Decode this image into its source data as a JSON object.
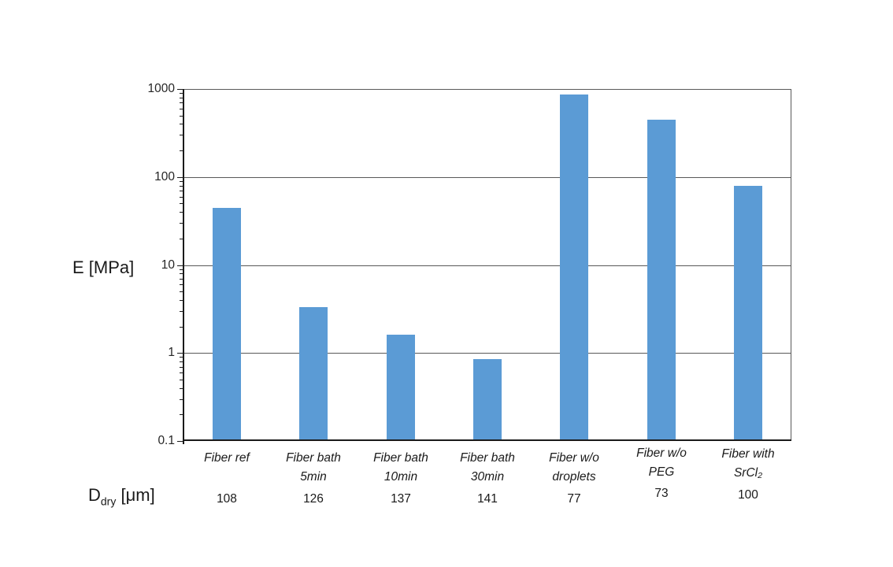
{
  "chart_data": {
    "type": "bar",
    "title": "",
    "ylabel": "E [MPa]",
    "y_axis": {
      "scale": "log",
      "min": 0.1,
      "max": 1000,
      "ticks": [
        {
          "label": "1000",
          "value": 1000
        },
        {
          "label": "100",
          "value": 100
        },
        {
          "label": "10",
          "value": 10
        },
        {
          "label": "1",
          "value": 1
        },
        {
          "label": "0.1",
          "value": 0.1
        }
      ],
      "grid": true
    },
    "categories": [
      {
        "slug": "fiber-ref",
        "lines": [
          "Fiber ref"
        ]
      },
      {
        "slug": "fiber-bath-5min",
        "lines": [
          "Fiber bath",
          "5min"
        ]
      },
      {
        "slug": "fiber-bath-10min",
        "lines": [
          "Fiber bath",
          "10min"
        ]
      },
      {
        "slug": "fiber-bath-30min",
        "lines": [
          "Fiber bath",
          "30min"
        ]
      },
      {
        "slug": "fiber-wo-droplets",
        "lines": [
          "Fiber w/o",
          "droplets"
        ]
      },
      {
        "slug": "fiber-wo-peg",
        "lines": [
          "Fiber w/o",
          "PEG"
        ]
      },
      {
        "slug": "fiber-with-srcl2",
        "lines": [
          "Fiber with",
          "SrCl₂"
        ]
      }
    ],
    "values": [
      45,
      3.3,
      1.6,
      0.85,
      870,
      450,
      79
    ],
    "d_row": {
      "symbol": "D",
      "subscript": "dry",
      "unit": "[μm]",
      "values": [
        "108",
        "126",
        "137",
        "141",
        "77",
        "73",
        "100"
      ]
    },
    "colors": {
      "bar": "#5B9BD5",
      "gridline": "#595959",
      "axis": "#1a1a1a",
      "text": "#262626"
    },
    "legend": null
  }
}
